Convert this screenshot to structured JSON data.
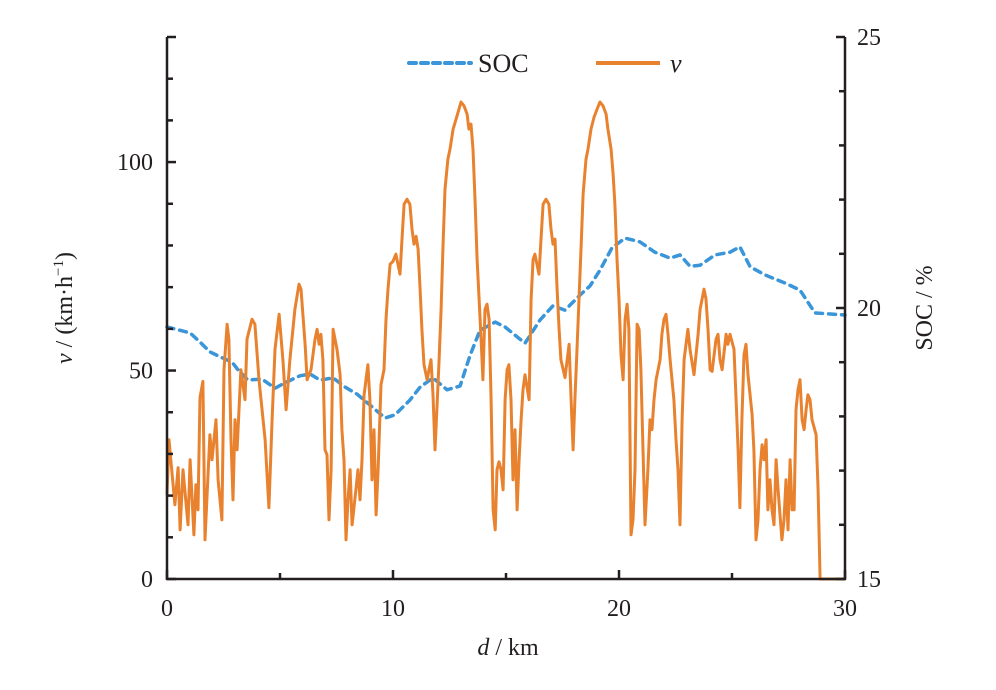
{
  "chart_data": {
    "type": "line",
    "title": "",
    "xlabel_italic": "d",
    "xlabel_rest": " / km",
    "ylabel_italic": "v",
    "ylabel_rest": " / (km·h",
    "ylabel_sup": "−1",
    "ylabel_close": ")",
    "y2label": "SOC / %",
    "xlim": [
      0,
      30
    ],
    "ylim": [
      0,
      130
    ],
    "y2lim": [
      15,
      25
    ],
    "xticks": [
      0,
      10,
      20,
      30
    ],
    "xticks_minor": [
      5,
      15,
      25
    ],
    "yticks": [
      0,
      50,
      100
    ],
    "yticks_minor": [
      10,
      20,
      30,
      40,
      60,
      70,
      80,
      90,
      110,
      120
    ],
    "y2ticks": [
      15,
      20,
      25
    ],
    "y2ticks_minor": [
      16,
      17,
      18,
      19,
      21,
      22,
      23,
      24
    ],
    "grid": false,
    "legend": {
      "placement": "top-center",
      "entries": [
        "SOC",
        "v"
      ]
    },
    "colors": {
      "SOC": "#3a96d8",
      "v": "#e8822e",
      "axis": "#231f20"
    },
    "series": [
      {
        "name": "SOC",
        "axis": "right",
        "style": "dashed",
        "x": [
          0,
          1.02,
          1.46,
          1.9,
          2.35,
          2.88,
          3.14,
          3.58,
          4.2,
          4.78,
          5.22,
          5.88,
          6.33,
          6.77,
          7.35,
          7.88,
          8.41,
          8.98,
          9.65,
          10.09,
          10.75,
          11.2,
          11.77,
          12.39,
          12.97,
          13.41,
          13.85,
          14.52,
          14.96,
          15.4,
          15.84,
          16.51,
          17.08,
          17.61,
          18.28,
          18.72,
          19.16,
          19.69,
          20.27,
          20.93,
          21.59,
          22.26,
          22.7,
          23.14,
          23.59,
          24.25,
          24.91,
          25.35,
          25.8,
          26.46,
          27.35,
          28.01,
          28.67,
          30
        ],
        "y": [
          19.65,
          19.54,
          19.37,
          19.19,
          19.1,
          19.0,
          18.86,
          18.67,
          18.69,
          18.52,
          18.62,
          18.75,
          18.78,
          18.67,
          18.71,
          18.54,
          18.41,
          18.21,
          17.97,
          18.03,
          18.3,
          18.54,
          18.71,
          18.49,
          18.56,
          19.13,
          19.59,
          19.74,
          19.65,
          19.5,
          19.35,
          19.78,
          20.04,
          19.96,
          20.24,
          20.41,
          20.7,
          21.11,
          21.29,
          21.22,
          21.03,
          20.92,
          20.98,
          20.77,
          20.79,
          20.98,
          21.03,
          21.13,
          20.76,
          20.61,
          20.46,
          20.33,
          19.91,
          19.87
        ]
      },
      {
        "name": "v",
        "axis": "left",
        "style": "solid",
        "x": [
          0,
          0.09,
          0.35,
          0.49,
          0.58,
          0.71,
          0.93,
          1.02,
          1.19,
          1.28,
          1.37,
          1.46,
          1.59,
          1.68,
          1.9,
          1.99,
          2.17,
          2.26,
          2.43,
          2.52,
          2.66,
          2.74,
          2.83,
          2.92,
          3.01,
          3.1,
          3.27,
          3.45,
          3.54,
          3.76,
          3.89,
          4.07,
          4.34,
          4.51,
          4.65,
          4.78,
          4.96,
          5.13,
          5.27,
          5.44,
          5.66,
          5.84,
          5.93,
          6.11,
          6.2,
          6.37,
          6.55,
          6.64,
          6.73,
          6.81,
          6.9,
          6.99,
          7.08,
          7.17,
          7.26,
          7.35,
          7.52,
          7.66,
          7.74,
          7.83,
          7.92,
          8.01,
          8.1,
          8.19,
          8.36,
          8.45,
          8.54,
          8.63,
          8.72,
          8.89,
          8.98,
          9.07,
          9.16,
          9.25,
          9.34,
          9.47,
          9.6,
          9.69,
          9.78,
          9.87,
          10.0,
          10.13,
          10.31,
          10.4,
          10.49,
          10.62,
          10.75,
          10.84,
          10.93,
          11.02,
          11.11,
          11.2,
          11.28,
          11.37,
          11.51,
          11.68,
          11.77,
          11.86,
          11.95,
          12.04,
          12.13,
          12.21,
          12.3,
          12.43,
          12.52,
          12.66,
          12.79,
          12.92,
          13.01,
          13.14,
          13.28,
          13.36,
          13.45,
          13.54,
          13.63,
          13.72,
          13.81,
          13.9,
          13.98,
          14.07,
          14.16,
          14.25,
          14.34,
          14.43,
          14.52,
          14.6,
          14.69,
          14.78,
          14.87,
          14.96,
          15.05,
          15.13,
          15.22,
          15.31,
          15.4,
          15.49,
          15.58,
          15.67,
          15.75,
          15.84,
          16.02,
          16.11,
          16.2,
          16.28,
          16.46,
          16.55,
          16.64,
          16.77,
          16.9,
          16.99,
          17.08,
          17.17,
          17.26,
          17.35,
          17.43,
          17.61,
          17.79,
          17.88,
          17.97,
          18.05,
          18.14,
          18.23,
          18.32,
          18.41,
          18.54,
          18.63,
          18.76,
          18.9,
          19.03,
          19.16,
          19.29,
          19.43,
          19.51,
          19.65,
          19.74,
          19.82,
          19.91,
          20.0,
          20.09,
          20.18,
          20.27,
          20.36,
          20.44,
          20.53,
          20.62,
          20.71,
          20.8,
          20.89,
          20.97,
          21.06,
          21.15,
          21.28,
          21.37,
          21.46,
          21.55,
          21.64,
          21.82,
          21.9,
          21.99,
          22.08,
          22.17,
          22.26,
          22.43,
          22.52,
          22.61,
          22.7,
          22.79,
          22.88,
          23.05,
          23.14,
          23.32,
          23.5,
          23.59,
          23.76,
          23.85,
          23.94,
          24.03,
          24.12,
          24.29,
          24.38,
          24.47,
          24.56,
          24.74,
          24.82,
          24.91,
          25.09,
          25.18,
          25.27,
          25.35,
          25.44,
          25.53,
          25.62,
          25.71,
          25.89,
          25.97,
          26.06,
          26.15,
          26.24,
          26.33,
          26.42,
          26.51,
          26.59,
          26.68,
          26.77,
          26.86,
          26.95,
          27.04,
          27.21,
          27.3,
          27.39,
          27.48,
          27.57,
          27.66,
          27.75,
          27.83,
          27.92,
          28.01,
          28.1,
          28.19,
          28.28,
          28.36,
          28.45,
          28.54,
          28.72,
          28.81,
          28.9,
          30
        ],
        "y": [
          20.2,
          33.4,
          17.8,
          26.7,
          11.8,
          26.2,
          13.0,
          28.6,
          10.6,
          22.6,
          16.6,
          43.5,
          47.4,
          9.4,
          34.6,
          28.6,
          38.2,
          23.8,
          14.2,
          50.2,
          61.1,
          57.5,
          33.4,
          19.0,
          38.2,
          31.0,
          50.2,
          43.0,
          57.5,
          62.3,
          61.1,
          47.8,
          33.4,
          17.1,
          38.2,
          55.1,
          63.5,
          52.6,
          40.6,
          52.6,
          64.7,
          70.7,
          69.5,
          56.3,
          47.8,
          50.2,
          57.5,
          59.9,
          56.3,
          58.7,
          52.6,
          31.0,
          29.8,
          14.2,
          26.2,
          59.9,
          55.1,
          49.0,
          35.8,
          28.6,
          9.4,
          19.0,
          26.2,
          13.0,
          21.4,
          26.2,
          19.0,
          28.6,
          44.2,
          51.4,
          43.0,
          23.8,
          35.8,
          15.4,
          26.2,
          46.6,
          50.2,
          62.3,
          69.5,
          75.5,
          76.2,
          77.9,
          73.1,
          81.5,
          89.9,
          91.1,
          89.9,
          83.9,
          80.3,
          82.2,
          79.1,
          69.5,
          59.9,
          51.4,
          47.8,
          52.6,
          44.2,
          31.0,
          41.8,
          52.6,
          64.7,
          79.1,
          93.5,
          100.7,
          103.1,
          107.9,
          110.3,
          112.7,
          114.4,
          113.5,
          111.5,
          107.9,
          109.1,
          103.1,
          91.1,
          76.7,
          67.1,
          57.5,
          47.8,
          64.7,
          65.9,
          62.3,
          43.0,
          16.6,
          11.8,
          26.2,
          28.1,
          26.2,
          21.4,
          43.0,
          50.2,
          51.4,
          43.0,
          23.8,
          35.8,
          16.6,
          28.6,
          38.2,
          45.4,
          49.0,
          43.0,
          67.1,
          76.7,
          77.9,
          73.1,
          81.5,
          89.9,
          91.1,
          89.9,
          83.9,
          80.3,
          81.5,
          69.5,
          59.9,
          52.6,
          48.3,
          56.3,
          43.0,
          31.0,
          43.0,
          55.1,
          67.1,
          79.1,
          92.3,
          100.7,
          103.1,
          107.9,
          110.8,
          112.7,
          114.4,
          113.5,
          111.5,
          107.9,
          103.1,
          97.1,
          89.9,
          76.7,
          67.1,
          53.8,
          47.8,
          62.3,
          65.9,
          59.9,
          10.6,
          14.2,
          26.2,
          61.1,
          59.9,
          50.2,
          31.0,
          13.0,
          26.2,
          38.2,
          35.8,
          43.0,
          47.8,
          52.6,
          58.7,
          62.3,
          63.5,
          58.7,
          52.6,
          43.0,
          33.4,
          26.2,
          13.0,
          38.2,
          52.6,
          59.9,
          55.1,
          49.0,
          58.7,
          64.7,
          69.5,
          67.1,
          59.9,
          50.2,
          49.8,
          57.5,
          58.7,
          52.6,
          50.2,
          58.7,
          56.3,
          58.7,
          55.1,
          43.0,
          31.0,
          17.1,
          38.2,
          53.8,
          56.3,
          49.0,
          39.4,
          31.0,
          9.4,
          14.2,
          26.2,
          32.2,
          28.6,
          33.4,
          16.6,
          23.8,
          16.6,
          13.0,
          28.6,
          21.4,
          9.4,
          14.2,
          23.8,
          11.8,
          28.6,
          16.6,
          16.6,
          40.6,
          45.4,
          47.8,
          38.2,
          35.8,
          40.6,
          44.2,
          43.0,
          38.2,
          34.6,
          21.4,
          0,
          0
        ]
      }
    ]
  }
}
